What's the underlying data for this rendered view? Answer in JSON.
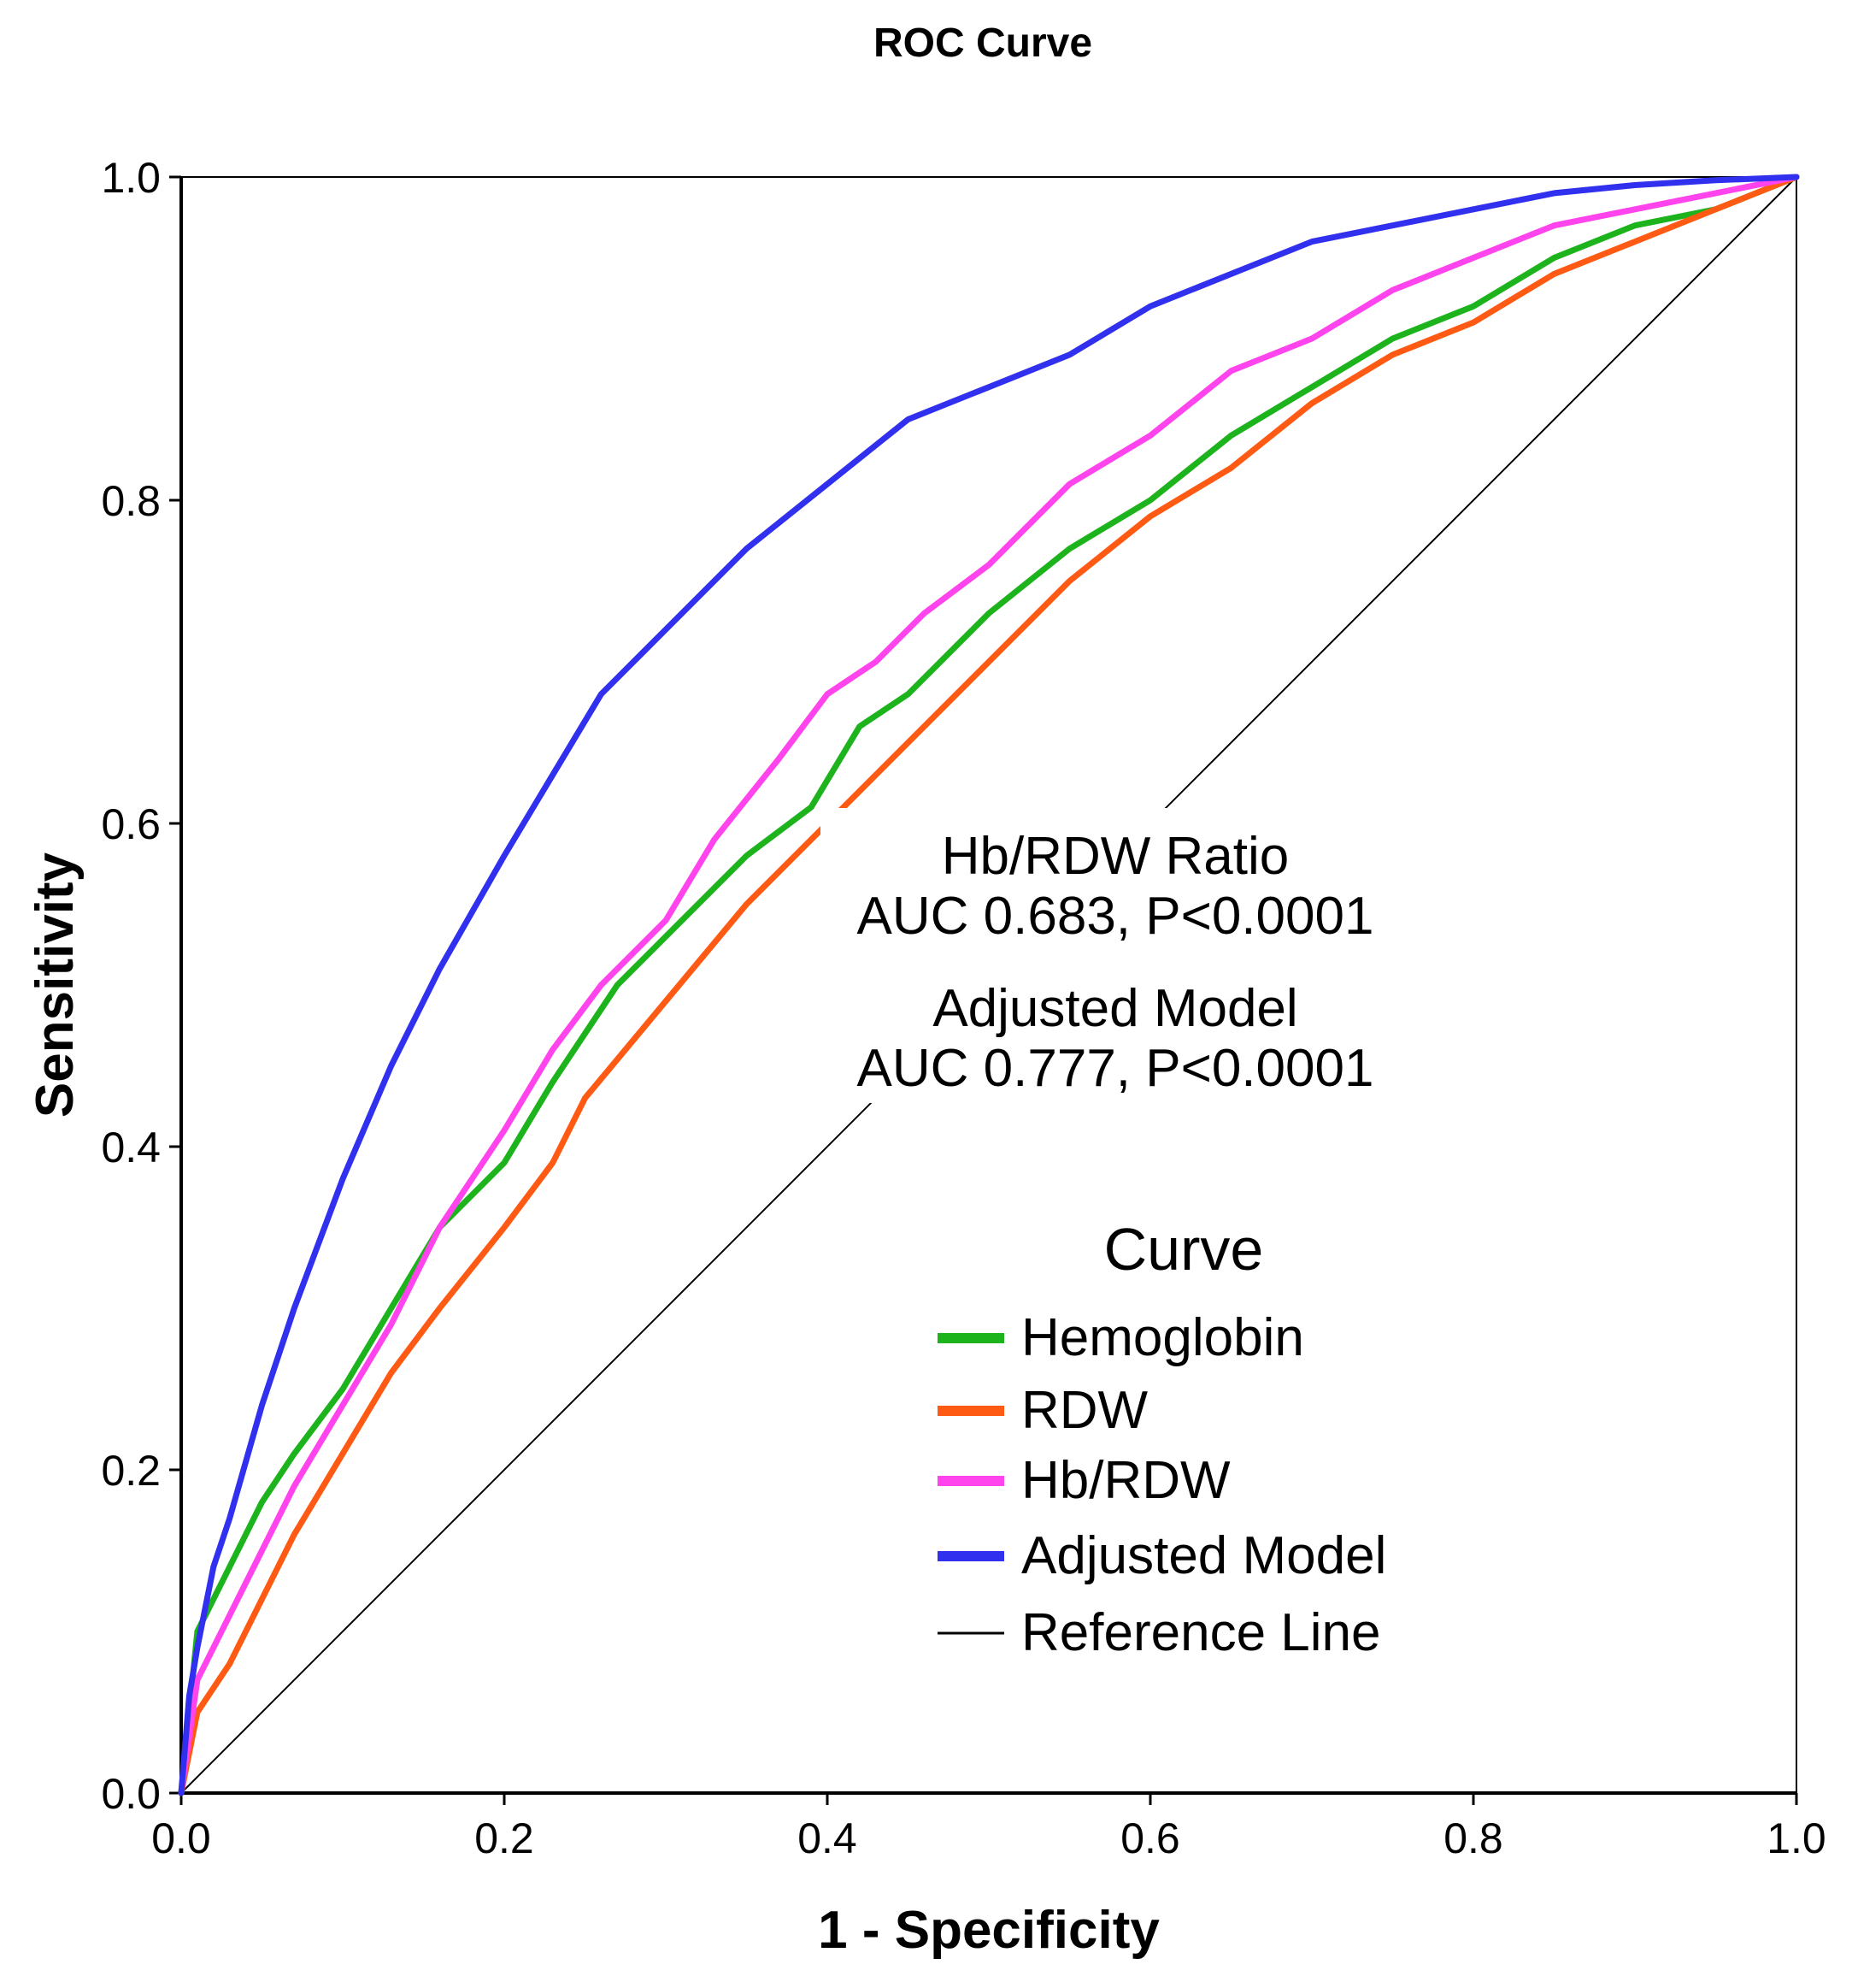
{
  "chart_data": {
    "type": "line",
    "title": "ROC Curve",
    "xlabel": "1 - Specificity",
    "ylabel": "Sensitivity",
    "xlim": [
      0,
      1
    ],
    "ylim": [
      0,
      1
    ],
    "xticks": [
      "0.0",
      "0.2",
      "0.4",
      "0.6",
      "0.8",
      "1.0"
    ],
    "yticks": [
      "0.0",
      "0.2",
      "0.4",
      "0.6",
      "0.8",
      "1.0"
    ],
    "grid": false,
    "legend": {
      "title": "Curve",
      "position": "lower-right",
      "entries": [
        "Hemoglobin",
        "RDW",
        "Hb/RDW",
        "Adjusted Model",
        "Reference Line"
      ]
    },
    "annotations": {
      "hb_rdw_name": "Hb/RDW Ratio",
      "hb_rdw_auc": "AUC 0.683, P<0.0001",
      "adjusted_name": "Adjusted Model",
      "adjusted_auc": "AUC 0.777, P<0.0001"
    },
    "series": [
      {
        "name": "Hemoglobin",
        "color": "#1db31d",
        "x": [
          0,
          0.01,
          0.03,
          0.05,
          0.07,
          0.1,
          0.13,
          0.16,
          0.2,
          0.23,
          0.27,
          0.31,
          0.35,
          0.39,
          0.42,
          0.45,
          0.5,
          0.55,
          0.6,
          0.65,
          0.7,
          0.75,
          0.8,
          0.85,
          0.9,
          0.95,
          1.0
        ],
        "y": [
          0,
          0.1,
          0.14,
          0.18,
          0.21,
          0.25,
          0.3,
          0.35,
          0.39,
          0.44,
          0.5,
          0.54,
          0.58,
          0.61,
          0.66,
          0.68,
          0.73,
          0.77,
          0.8,
          0.84,
          0.87,
          0.9,
          0.92,
          0.95,
          0.97,
          0.98,
          1.0
        ]
      },
      {
        "name": "RDW",
        "color": "#ff5a14",
        "x": [
          0,
          0.01,
          0.03,
          0.05,
          0.07,
          0.1,
          0.13,
          0.16,
          0.2,
          0.23,
          0.25,
          0.3,
          0.35,
          0.4,
          0.45,
          0.5,
          0.55,
          0.6,
          0.65,
          0.7,
          0.75,
          0.8,
          0.85,
          0.9,
          0.95,
          1.0
        ],
        "y": [
          0,
          0.05,
          0.08,
          0.12,
          0.16,
          0.21,
          0.26,
          0.3,
          0.35,
          0.39,
          0.43,
          0.49,
          0.55,
          0.6,
          0.65,
          0.7,
          0.75,
          0.79,
          0.82,
          0.86,
          0.89,
          0.91,
          0.94,
          0.96,
          0.98,
          1.0
        ]
      },
      {
        "name": "Hb/RDW",
        "color": "#ff44ee",
        "x": [
          0,
          0.01,
          0.03,
          0.05,
          0.07,
          0.1,
          0.13,
          0.16,
          0.2,
          0.23,
          0.26,
          0.3,
          0.33,
          0.37,
          0.4,
          0.43,
          0.46,
          0.5,
          0.55,
          0.6,
          0.65,
          0.7,
          0.75,
          0.8,
          0.85,
          0.9,
          0.95,
          1.0
        ],
        "y": [
          0,
          0.07,
          0.11,
          0.15,
          0.19,
          0.24,
          0.29,
          0.35,
          0.41,
          0.46,
          0.5,
          0.54,
          0.59,
          0.64,
          0.68,
          0.7,
          0.73,
          0.76,
          0.81,
          0.84,
          0.88,
          0.9,
          0.93,
          0.95,
          0.97,
          0.98,
          0.99,
          1.0
        ]
      },
      {
        "name": "Adjusted Model",
        "color": "#3030ee",
        "x": [
          0,
          0.005,
          0.01,
          0.02,
          0.03,
          0.05,
          0.07,
          0.1,
          0.13,
          0.16,
          0.2,
          0.23,
          0.26,
          0.3,
          0.35,
          0.4,
          0.45,
          0.5,
          0.55,
          0.6,
          0.65,
          0.7,
          0.75,
          0.8,
          0.85,
          0.9,
          0.95,
          1.0
        ],
        "y": [
          0,
          0.06,
          0.09,
          0.14,
          0.17,
          0.24,
          0.3,
          0.38,
          0.45,
          0.51,
          0.58,
          0.63,
          0.68,
          0.72,
          0.77,
          0.81,
          0.85,
          0.87,
          0.89,
          0.92,
          0.94,
          0.96,
          0.97,
          0.98,
          0.99,
          0.995,
          0.998,
          1.0
        ]
      },
      {
        "name": "Reference Line",
        "color": "#000000",
        "x": [
          0,
          1
        ],
        "y": [
          0,
          1
        ]
      }
    ]
  }
}
